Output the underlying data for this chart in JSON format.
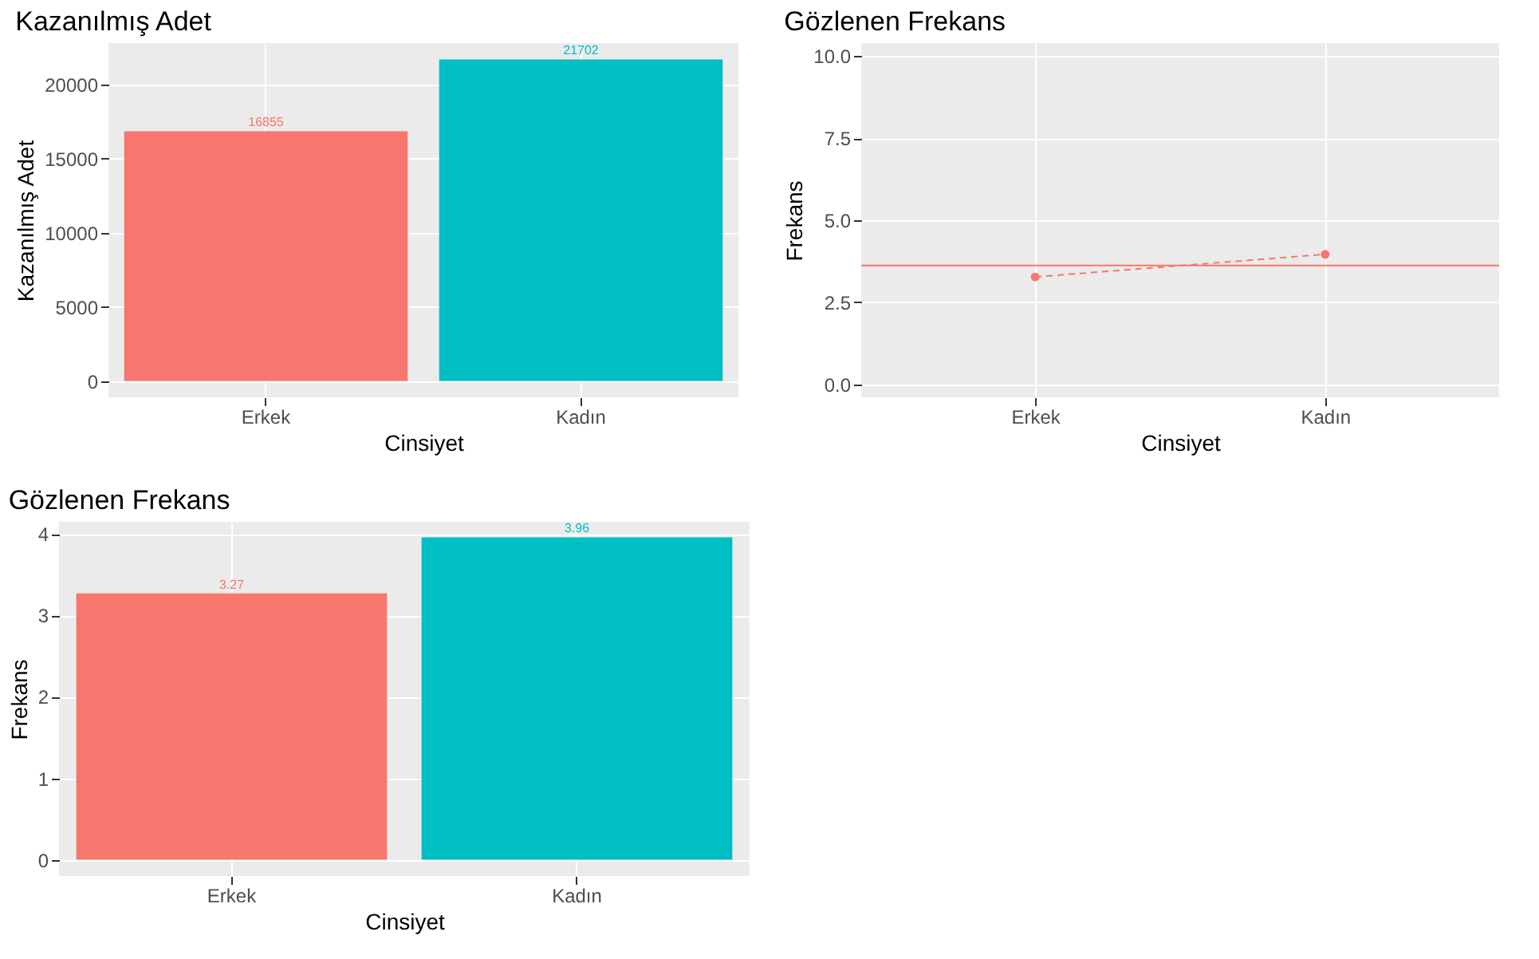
{
  "chart_data": [
    {
      "type": "bar",
      "title": "Kazanılmış Adet",
      "xlabel": "Cinsiyet",
      "ylabel": "Kazanılmış Adet",
      "categories": [
        "Erkek",
        "Kadın"
      ],
      "values": [
        16855,
        21702
      ],
      "colors": [
        "#f8766d",
        "#00bfc4"
      ],
      "data_labels": true,
      "ylim": [
        -1100,
        22800
      ],
      "yticks": [
        0,
        5000,
        10000,
        15000,
        20000
      ],
      "grid": true
    },
    {
      "type": "line",
      "title": "Gözlenen Frekans",
      "xlabel": "Cinsiyet",
      "ylabel": "Frekans",
      "categories": [
        "Erkek",
        "Kadın"
      ],
      "series": [
        {
          "color": "#f8766d",
          "values": [
            3.27,
            3.96
          ]
        }
      ],
      "marker": "circle",
      "line_style": "dashed",
      "ref_lines": [
        {
          "axis": "y",
          "value": 3.62,
          "color": "#f8766d",
          "line_style": "solid"
        }
      ],
      "ylim": [
        -0.4,
        10.4
      ],
      "yticks": [
        {
          "value": 0,
          "label": "0.0"
        },
        2.5,
        {
          "value": 5,
          "label": "5.0"
        },
        7.5,
        {
          "value": 10,
          "label": "10.0"
        }
      ],
      "grid": true
    },
    {
      "type": "bar",
      "title": "Gözlenen Frekans",
      "xlabel": "Cinsiyet",
      "ylabel": "Frekans",
      "categories": [
        "Erkek",
        "Kadın"
      ],
      "values": [
        3.27,
        3.96
      ],
      "colors": [
        "#f8766d",
        "#00bfc4"
      ],
      "data_labels": true,
      "ylim": [
        -0.2,
        4.15
      ],
      "yticks": [
        0,
        1,
        2,
        3,
        4
      ],
      "grid": true
    }
  ]
}
